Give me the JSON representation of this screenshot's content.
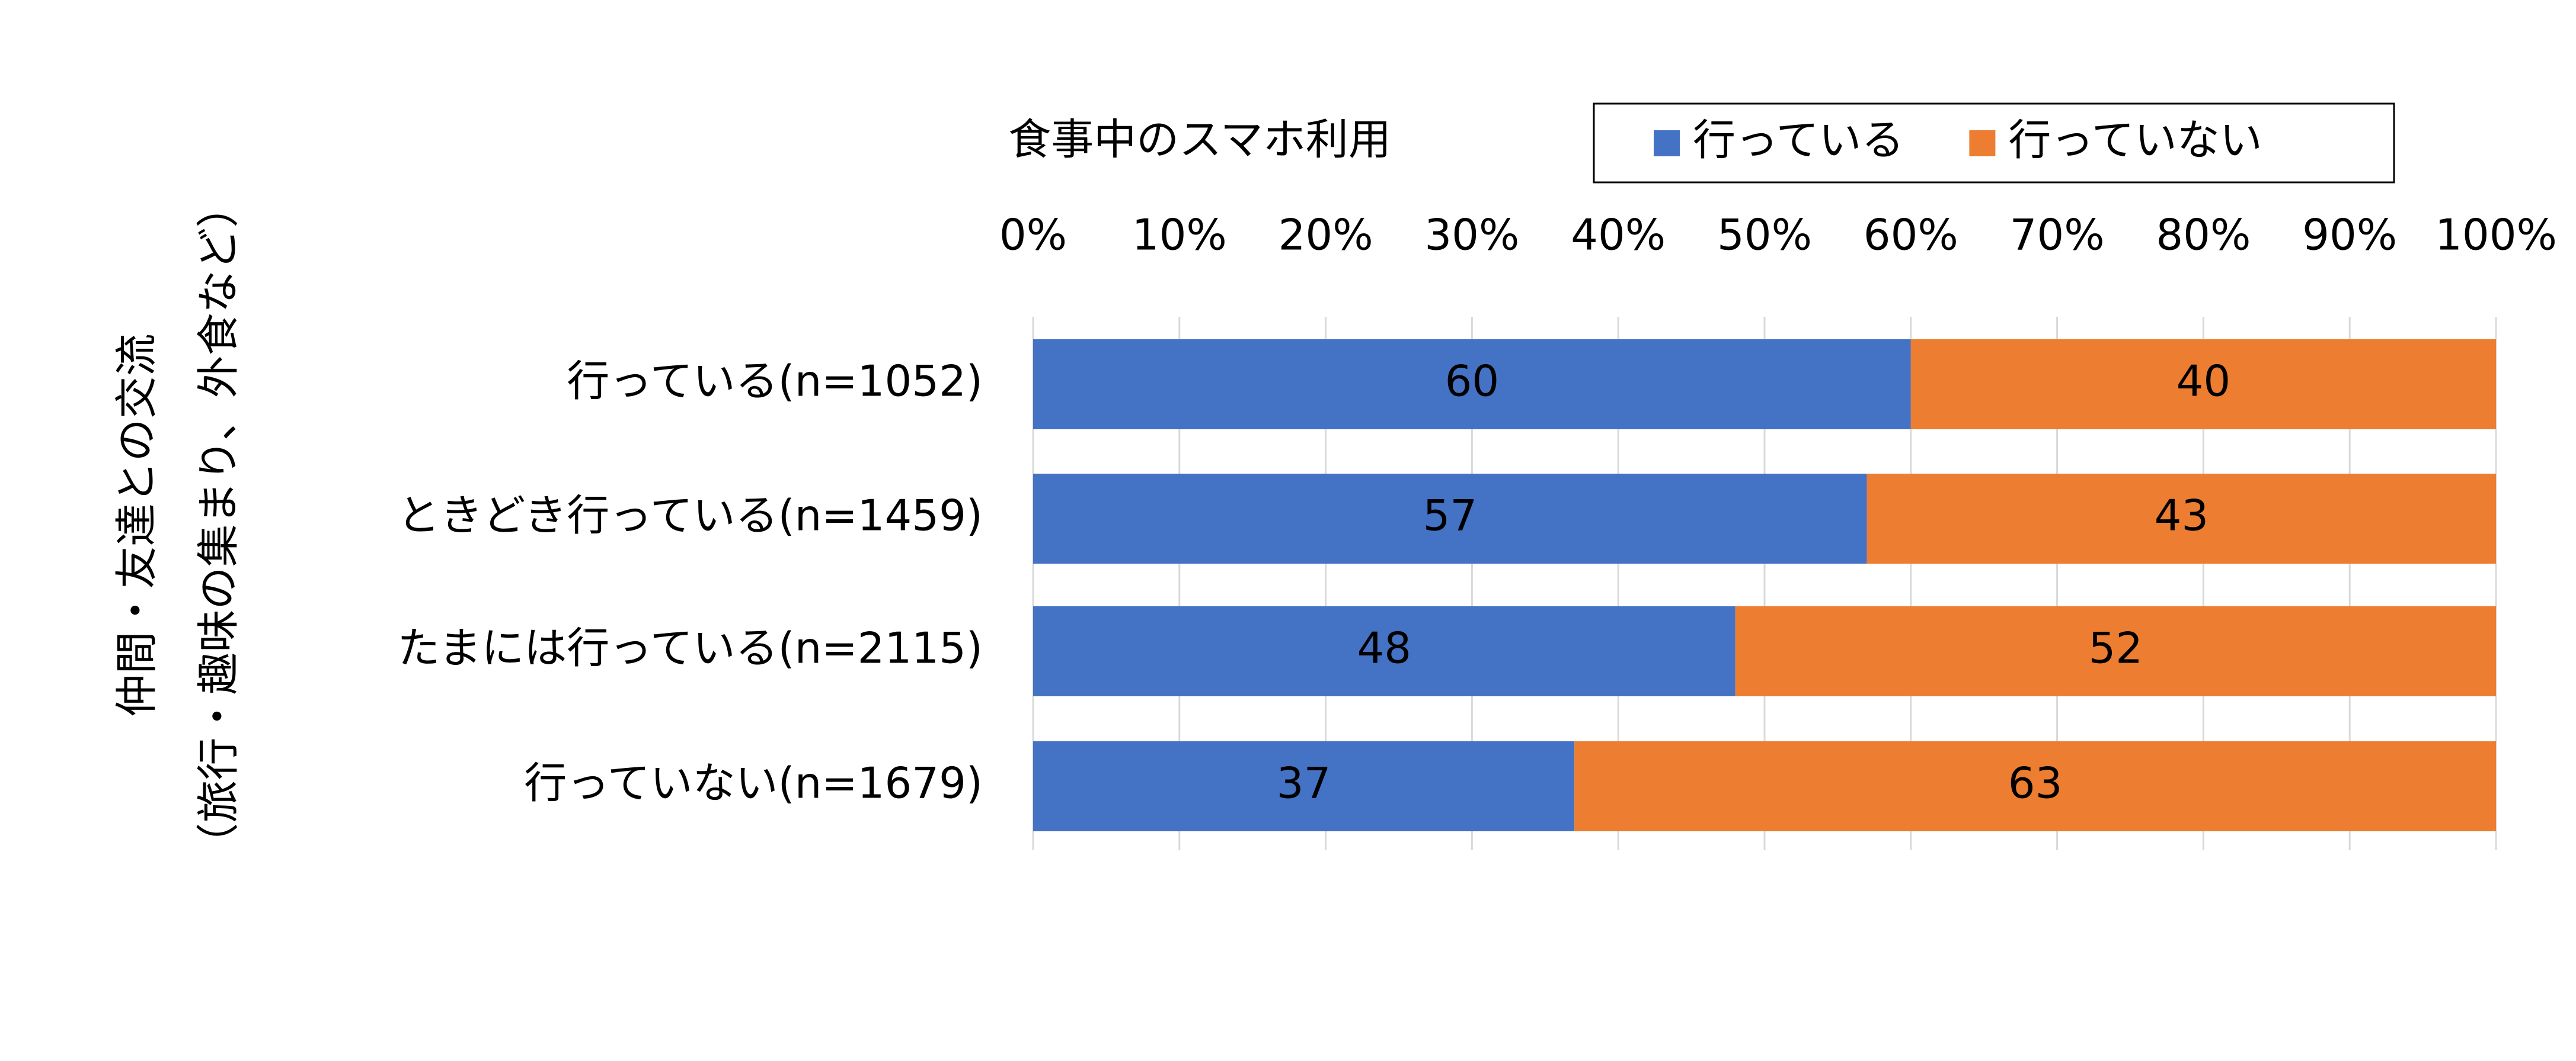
{
  "chart_data": {
    "type": "stacked-bar-horizontal",
    "title": "食事中のスマホ利用",
    "y_label_lines": [
      "仲間・友達との交流",
      "（旅行・趣味の集まり、外食など）"
    ],
    "categories": [
      "行っている(n=1052)",
      "ときどき行っている(n=1459)",
      "たまには行っている(n=2115)",
      "行っていない(n=1679)"
    ],
    "series": [
      {
        "name": "行っている",
        "color": "#4472c4",
        "values": [
          60,
          57,
          48,
          37
        ]
      },
      {
        "name": "行っていない",
        "color": "#ed7d31",
        "values": [
          40,
          43,
          52,
          63
        ]
      }
    ],
    "xlim": [
      0,
      100
    ],
    "xticks": [
      {
        "value": 0,
        "label": "0%"
      },
      {
        "value": 10,
        "label": "10%"
      },
      {
        "value": 20,
        "label": "20%"
      },
      {
        "value": 30,
        "label": "30%"
      },
      {
        "value": 40,
        "label": "40%"
      },
      {
        "value": 50,
        "label": "50%"
      },
      {
        "value": 60,
        "label": "60%"
      },
      {
        "value": 70,
        "label": "70%"
      },
      {
        "value": 80,
        "label": "80%"
      },
      {
        "value": 90,
        "label": "90%"
      },
      {
        "value": 100,
        "label": "100%"
      }
    ],
    "grid": true,
    "legend": "top-right"
  }
}
